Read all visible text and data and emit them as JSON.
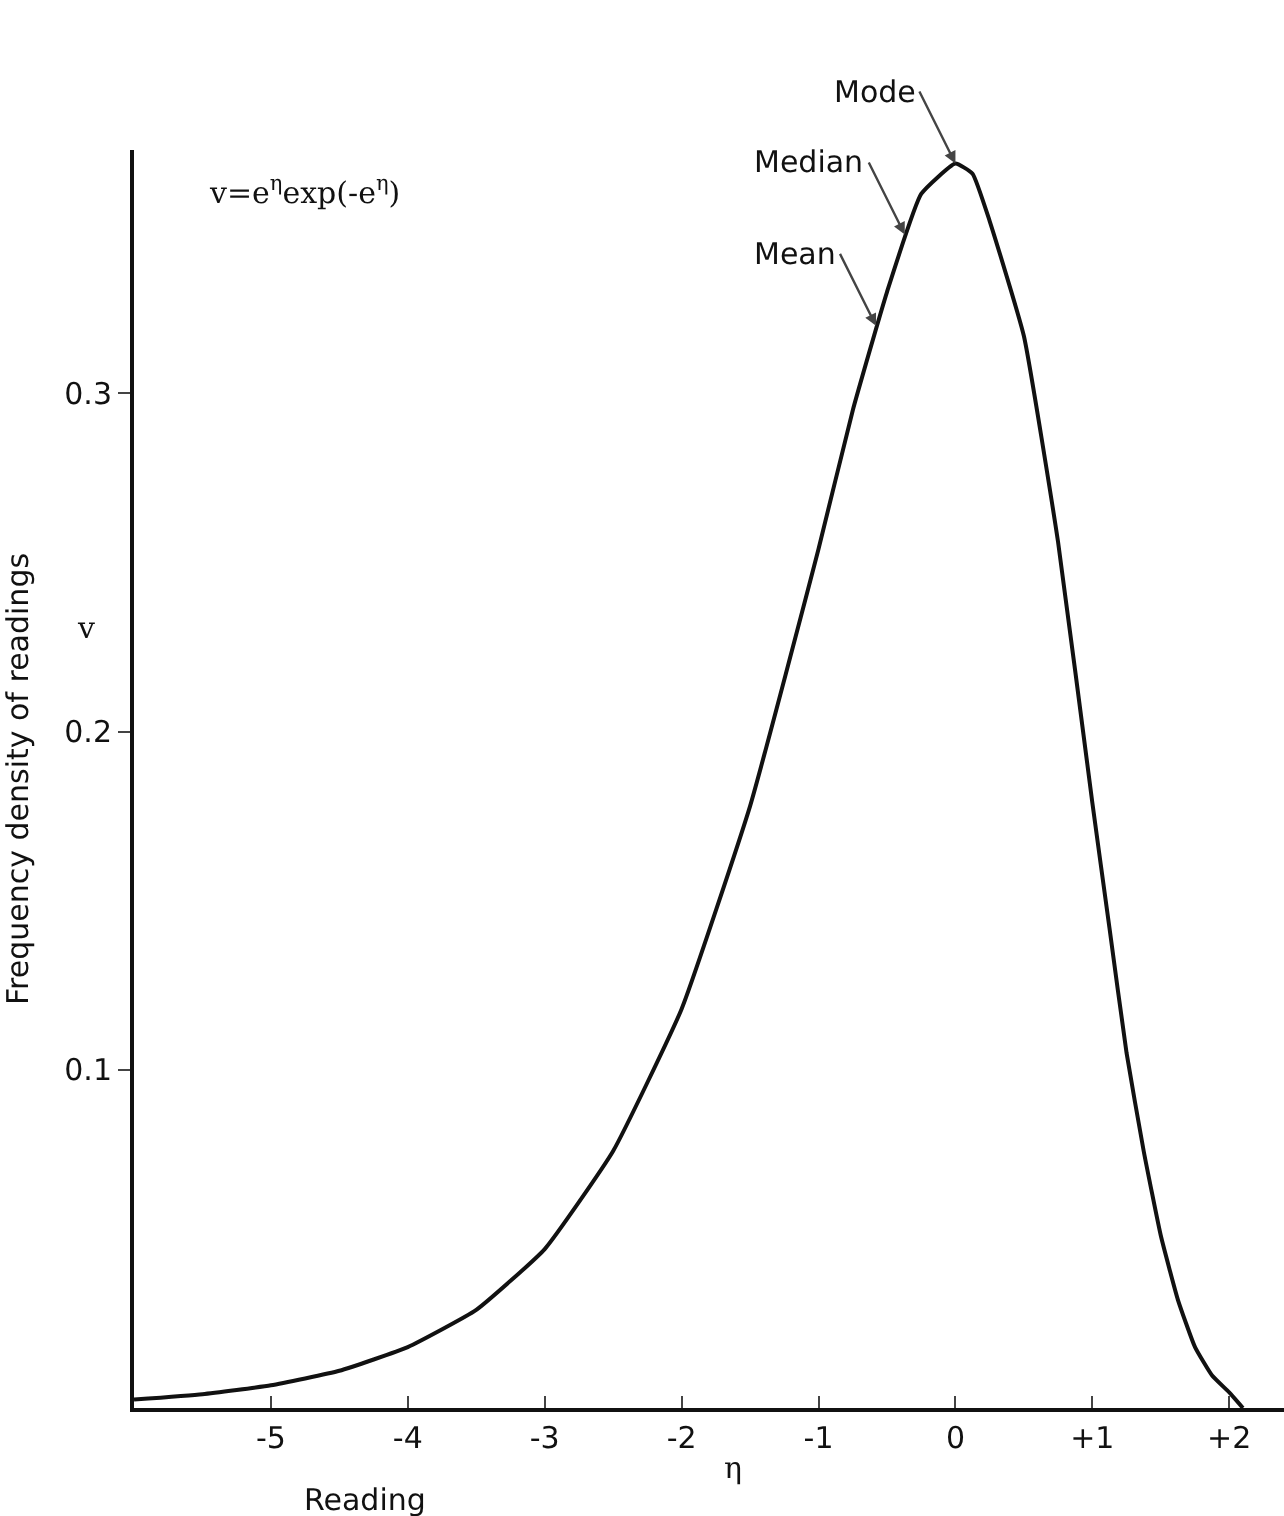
{
  "chart_data": {
    "type": "line",
    "xlabel": "Reading",
    "ylabel": "Frequency density of readings",
    "x": [
      -6,
      -5.5,
      -5,
      -4.5,
      -4,
      -3.5,
      -3,
      -2.5,
      -2,
      -1.5,
      -1,
      -0.75,
      -0.5,
      -0.25,
      0,
      0.125,
      0.25,
      0.5,
      0.75,
      1,
      1.125,
      1.25,
      1.375,
      1.5,
      1.625,
      1.75,
      1.875,
      2,
      2.1
    ],
    "series": [
      {
        "color": "#111111",
        "values": [
          0.0025,
          0.0041,
          0.0067,
          0.011,
          0.018,
          0.029,
          0.047,
          0.076,
          0.118,
          0.178,
          0.254,
          0.295,
          0.33,
          0.359,
          0.368,
          0.365,
          0.351,
          0.317,
          0.256,
          0.179,
          0.142,
          0.105,
          0.076,
          0.051,
          0.032,
          0.018,
          0.0096,
          0.0046,
          0
        ]
      }
    ],
    "xlim": [
      -6,
      2.4
    ],
    "xticks": [
      -5,
      -4,
      -3,
      -2,
      -1,
      0,
      {
        "value": 1,
        "label": "+1"
      },
      {
        "value": 2,
        "label": "+2"
      }
    ],
    "ylim": [
      0,
      0.372
    ],
    "yticks": [
      0.1,
      0.2,
      0.3
    ],
    "grid": false,
    "marker": "none",
    "line_style": "solid",
    "annotations": [
      "v=e$^{η}$exp(-e$^{η}$)",
      "v",
      "η",
      {
        "text": "Mode",
        "x": 0,
        "y": 0.368
      },
      {
        "text": "Median",
        "x": -0.37,
        "y": 0.347
      },
      {
        "text": "Mean",
        "x": -0.58,
        "y": 0.32
      }
    ]
  }
}
